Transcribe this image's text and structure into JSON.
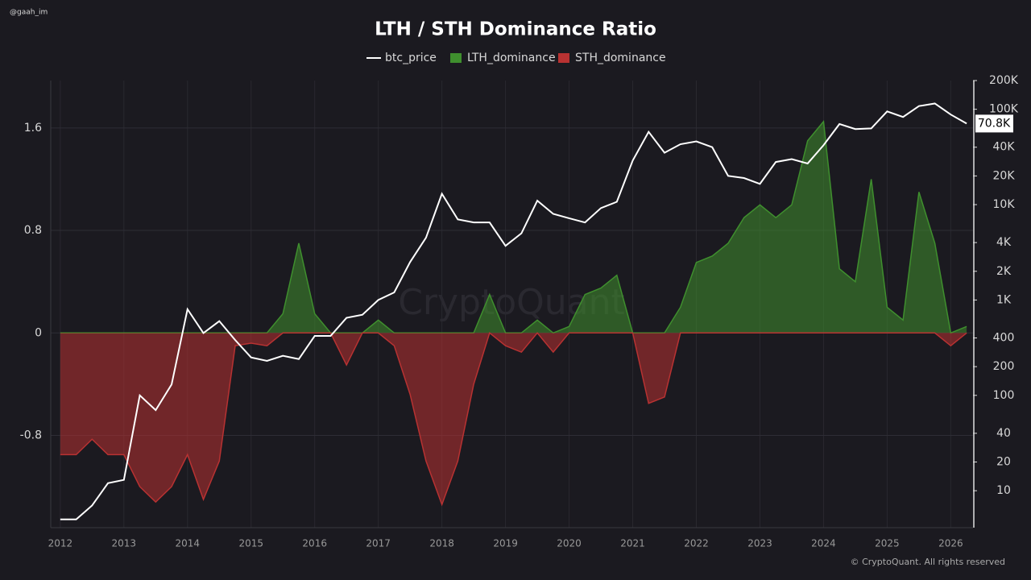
{
  "chart_data": {
    "type": "area",
    "title": "LTH / STH Dominance Ratio",
    "watermark": "CryptoQuant",
    "handle": "@gaah_im",
    "copyright": "© CryptoQuant. All rights reserved",
    "legend": "top",
    "grid": true,
    "x": [
      2012.0,
      2012.25,
      2012.5,
      2012.75,
      2013.0,
      2013.25,
      2013.5,
      2013.75,
      2014.0,
      2014.25,
      2014.5,
      2014.75,
      2015.0,
      2015.25,
      2015.5,
      2015.75,
      2016.0,
      2016.25,
      2016.5,
      2016.75,
      2017.0,
      2017.25,
      2017.5,
      2017.75,
      2018.0,
      2018.25,
      2018.5,
      2018.75,
      2019.0,
      2019.25,
      2019.5,
      2019.75,
      2020.0,
      2020.25,
      2020.5,
      2020.75,
      2021.0,
      2021.25,
      2021.5,
      2021.75,
      2022.0,
      2022.25,
      2022.5,
      2022.75,
      2023.0,
      2023.25,
      2023.5,
      2023.75,
      2024.0,
      2024.25,
      2024.5,
      2024.75,
      2025.0,
      2025.25,
      2025.5,
      2025.75,
      2026.0,
      2026.25
    ],
    "xlim": [
      2011.85,
      2026.35
    ],
    "xticks": [
      2012,
      2013,
      2014,
      2015,
      2016,
      2017,
      2018,
      2019,
      2020,
      2021,
      2022,
      2023,
      2024,
      2025,
      2026
    ],
    "ylim": [
      -1.52,
      1.97
    ],
    "yticks": [
      1.6,
      0.8,
      0,
      -0.8
    ],
    "y2lim": [
      4.1,
      200000
    ],
    "y2scale": "log",
    "y2ticks": [
      {
        "value": 200000,
        "label": "200K"
      },
      {
        "value": 100000,
        "label": "100K"
      },
      {
        "value": 40000,
        "label": "40K"
      },
      {
        "value": 20000,
        "label": "20K"
      },
      {
        "value": 10000,
        "label": "10K"
      },
      {
        "value": 4000,
        "label": "4K"
      },
      {
        "value": 2000,
        "label": "2K"
      },
      {
        "value": 1000,
        "label": "1K"
      },
      400,
      200,
      100,
      40,
      20,
      10
    ],
    "series": [
      {
        "name": "btc_price",
        "color": "#ffffff",
        "axis": "y2",
        "kind": "line",
        "last_label": "70.8K",
        "values": [
          5,
          5,
          7,
          12,
          13,
          100,
          70,
          130,
          800,
          450,
          600,
          380,
          250,
          230,
          260,
          240,
          420,
          420,
          650,
          700,
          1000,
          1200,
          2500,
          4500,
          13000,
          7000,
          6500,
          6500,
          3700,
          5000,
          11000,
          8000,
          7200,
          6500,
          9200,
          10700,
          29000,
          58000,
          35000,
          43000,
          46000,
          40000,
          20000,
          19000,
          16500,
          28000,
          30000,
          27000,
          42000,
          70000,
          62000,
          63000,
          95000,
          83000,
          108000,
          115000,
          88000,
          70800
        ]
      },
      {
        "name": "LTH_dominance",
        "color": "#3f8f2e",
        "kind": "area",
        "values": [
          0,
          0,
          0,
          0,
          0,
          0,
          0,
          0,
          0,
          0,
          0,
          0,
          0,
          0,
          0.15,
          0.7,
          0.15,
          0,
          0,
          0,
          0.1,
          0,
          0,
          0,
          0,
          0,
          0,
          0.3,
          0,
          0,
          0.1,
          0,
          0.05,
          0.3,
          0.35,
          0.45,
          0,
          0,
          0,
          0.2,
          0.55,
          0.6,
          0.7,
          0.9,
          1.0,
          0.9,
          1.0,
          1.5,
          1.65,
          0.5,
          0.4,
          1.2,
          0.2,
          0.1,
          1.1,
          0.7,
          0,
          0.05
        ]
      },
      {
        "name": "STH_dominance",
        "color": "#b83232",
        "kind": "area",
        "values": [
          -0.95,
          -0.95,
          -0.83,
          -0.95,
          -0.95,
          -1.2,
          -1.32,
          -1.2,
          -0.95,
          -1.3,
          -1.0,
          -0.1,
          -0.08,
          -0.1,
          0,
          0,
          0,
          0,
          -0.25,
          0,
          0,
          -0.1,
          -0.48,
          -1.0,
          -1.34,
          -1.0,
          -0.4,
          0,
          -0.1,
          -0.15,
          0,
          -0.15,
          0,
          0,
          0,
          0,
          0,
          -0.55,
          -0.5,
          0,
          0,
          0,
          0,
          0,
          0,
          0,
          0,
          0,
          0,
          0,
          0,
          0,
          0,
          0,
          0,
          0,
          -0.1,
          0
        ]
      }
    ]
  }
}
